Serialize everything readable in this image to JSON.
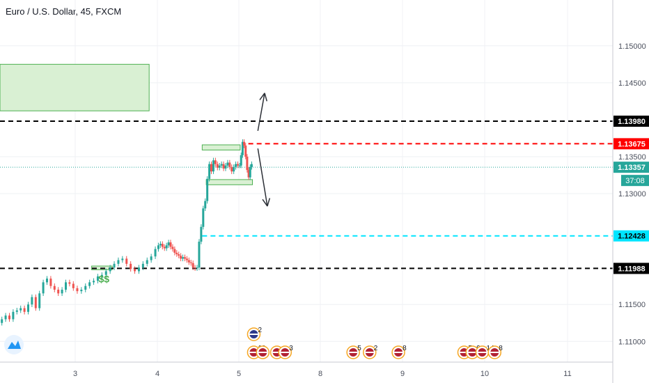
{
  "chart_data": {
    "type": "candlestick",
    "title": "Euro / U.S. Dollar, 45, FXCM",
    "x_ticks": [
      "3",
      "4",
      "5",
      "8",
      "9",
      "10",
      "11"
    ],
    "y_ticks": [
      "1.15000",
      "1.14500",
      "1.13500",
      "1.13000",
      "1.11500",
      "1.11000"
    ],
    "ylim": [
      1.1072,
      1.1562
    ],
    "grid": true,
    "price_levels": [
      {
        "name": "resistance",
        "value": 1.1398,
        "label": "1.13980",
        "color": "#000000",
        "style": "dashed"
      },
      {
        "name": "range-high",
        "value": 1.13675,
        "label": "1.13675",
        "color": "#ff0000",
        "style": "dashed"
      },
      {
        "name": "last-price",
        "value": 1.13357,
        "label": "1.13357",
        "color": "#26a69a",
        "style": "dotted"
      },
      {
        "name": "support",
        "value": 1.12428,
        "label": "1.12428",
        "color": "#00e5ff",
        "style": "dashed"
      },
      {
        "name": "base",
        "value": 1.11988,
        "label": "1.11988",
        "color": "#000000",
        "style": "dashed"
      }
    ],
    "countdown": "37:08",
    "annotation_text": "$$",
    "zones": [
      {
        "name": "supply-zone",
        "x0": 0.0,
        "x1": 3.9,
        "y0": 1.1412,
        "y1": 1.1475
      },
      {
        "name": "range-top-box",
        "x0": 4.55,
        "x1": 5.05,
        "y0": 1.1359,
        "y1": 1.1366
      },
      {
        "name": "range-bottom-box",
        "x0": 4.6,
        "x1": 5.5,
        "y0": 1.1312,
        "y1": 1.1319
      },
      {
        "name": "demand-box",
        "x0": 3.2,
        "x1": 3.45,
        "y0": 1.1197,
        "y1": 1.1202
      }
    ],
    "projection_arrows": [
      {
        "name": "bullish",
        "from": [
          5.7,
          1.1385
        ],
        "to": [
          5.95,
          1.1436
        ]
      },
      {
        "name": "bearish",
        "from": [
          5.7,
          1.1361
        ],
        "to": [
          6.05,
          1.1283
        ]
      }
    ],
    "ohlc_path": [
      [
        1.113,
        1.1135,
        1.113,
        1.114,
        1.1142,
        1.1145,
        1.114,
        1.115,
        1.116,
        1.1145,
        1.1165,
        1.118,
        1.1185,
        1.1175,
        1.117,
        1.1165,
        1.117,
        1.118,
        1.1178,
        1.1172
      ],
      [
        1.1168,
        1.117,
        1.1175,
        1.118,
        1.1182,
        1.1188,
        1.119,
        1.1195,
        1.12,
        1.1205,
        1.121,
        1.1212,
        1.1205,
        1.1198,
        1.1195,
        1.12,
        1.1205,
        1.121,
        1.1215,
        1.1225
      ],
      [
        1.123,
        1.1232,
        1.1228,
        1.1226,
        1.123,
        1.1234,
        1.1228,
        1.1225,
        1.122,
        1.1218,
        1.1216,
        1.1212,
        1.1214,
        1.1212,
        1.121,
        1.1207,
        1.1206,
        1.12,
        1.1199,
        1.12
      ],
      [
        1.1235,
        1.1255,
        1.128,
        1.129,
        1.132,
        1.134,
        1.133,
        1.1345,
        1.134,
        1.1335,
        1.1338,
        1.134,
        1.1334,
        1.1338,
        1.1342,
        1.1336,
        1.133,
        1.1336,
        1.134,
        1.1338
      ],
      [
        1.1338,
        1.1352,
        1.137,
        1.1365,
        1.135,
        1.1332,
        1.1322,
        1.1336,
        1.134
      ]
    ],
    "event_markers": [
      {
        "x": 5.55,
        "row": 1,
        "count": "2"
      },
      {
        "x": 5.55,
        "row": 2,
        "count": "10"
      },
      {
        "x": 5.88,
        "row": 2,
        "count": ""
      },
      {
        "x": 6.4,
        "row": 2,
        "count": ""
      },
      {
        "x": 6.7,
        "row": 2,
        "count": "3"
      },
      {
        "x": 8.4,
        "row": 2,
        "count": "5"
      },
      {
        "x": 8.6,
        "row": 2,
        "count": "2"
      },
      {
        "x": 8.95,
        "row": 2,
        "count": "8"
      },
      {
        "x": 9.75,
        "row": 2,
        "count": "5"
      },
      {
        "x": 9.85,
        "row": 2,
        "count": "9"
      },
      {
        "x": 9.97,
        "row": 2,
        "count": "14"
      },
      {
        "x": 10.12,
        "row": 2,
        "count": "8"
      }
    ],
    "colors": {
      "up": "#26a69a",
      "down": "#ef5350",
      "zone_fill": "#d9f0d3",
      "zone_stroke": "#4caf50",
      "dollar": "#4caf50"
    }
  }
}
